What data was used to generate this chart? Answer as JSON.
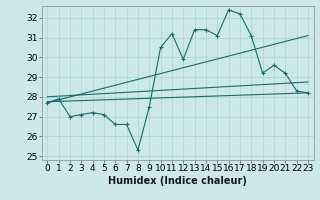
{
  "xlabel": "Humidex (Indice chaleur)",
  "bg_color": "#cce8e8",
  "line_color": "#1a6b6b",
  "x_values": [
    0,
    1,
    2,
    3,
    4,
    5,
    6,
    7,
    8,
    9,
    10,
    11,
    12,
    13,
    14,
    15,
    16,
    17,
    18,
    19,
    20,
    21,
    22,
    23
  ],
  "line1": [
    27.7,
    27.9,
    27.0,
    27.1,
    27.2,
    27.1,
    26.6,
    26.6,
    25.3,
    27.5,
    30.5,
    31.2,
    29.9,
    31.4,
    31.4,
    31.1,
    32.4,
    32.2,
    31.1,
    29.2,
    29.6,
    29.2,
    28.3,
    28.2
  ],
  "line2_x": [
    0,
    23
  ],
  "line2_y": [
    27.75,
    28.2
  ],
  "line3_x": [
    0,
    23
  ],
  "line3_y": [
    28.0,
    28.75
  ],
  "line4_x": [
    0,
    23
  ],
  "line4_y": [
    27.7,
    31.1
  ],
  "ylim": [
    24.8,
    32.6
  ],
  "yticks": [
    25,
    26,
    27,
    28,
    29,
    30,
    31,
    32
  ],
  "xticks": [
    0,
    1,
    2,
    3,
    4,
    5,
    6,
    7,
    8,
    9,
    10,
    11,
    12,
    13,
    14,
    15,
    16,
    17,
    18,
    19,
    20,
    21,
    22,
    23
  ],
  "grid_color": "#aad4d4",
  "font_size": 6.5
}
